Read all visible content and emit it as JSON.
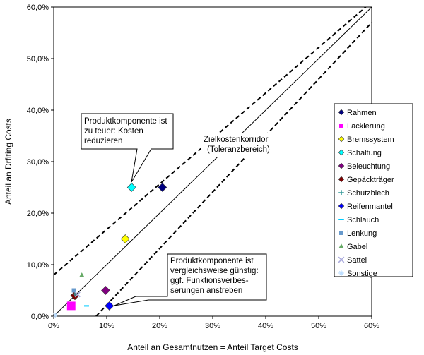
{
  "chart_data": {
    "type": "scatter",
    "title": "",
    "xlabel": "Anteil an Gesamtnutzen = Anteil Target Costs",
    "ylabel": "Anteil an Drfiting Costs",
    "xlim": [
      0,
      60
    ],
    "ylim": [
      0,
      60
    ],
    "x_ticks": [
      "0%",
      "10%",
      "20%",
      "30%",
      "40%",
      "50%",
      "60%"
    ],
    "y_ticks": [
      "0,0%",
      "10,0%",
      "20,0%",
      "30,0%",
      "40,0%",
      "50,0%",
      "60,0%"
    ],
    "grid": false,
    "legend_position": "right",
    "series": [
      {
        "name": "Rahmen",
        "marker": "diamond",
        "color": "#000080",
        "x": 20.5,
        "y": 25
      },
      {
        "name": "Lackierung",
        "marker": "square",
        "color": "#ff00ff",
        "x": 3.3,
        "y": 2
      },
      {
        "name": "Bremssystem",
        "marker": "diamond",
        "color": "#ffff00",
        "x": 13.5,
        "y": 15
      },
      {
        "name": "Schaltung",
        "marker": "diamond",
        "color": "#00ffff",
        "x": 14.7,
        "y": 25
      },
      {
        "name": "Beleuchtung",
        "marker": "diamond",
        "color": "#800080",
        "x": 9.8,
        "y": 5
      },
      {
        "name": "Gepäckträger",
        "marker": "diamond",
        "color": "#800000",
        "x": 4,
        "y": 4
      },
      {
        "name": "Schutzblech",
        "marker": "plus",
        "color": "#339999",
        "x": 4,
        "y": 4.3
      },
      {
        "name": "Reifenmantel",
        "marker": "diamond",
        "color": "#0000ff",
        "x": 10.5,
        "y": 2
      },
      {
        "name": "Schlauch",
        "marker": "dash",
        "color": "#00ccff",
        "x": 6.2,
        "y": 2
      },
      {
        "name": "Lenkung",
        "marker": "square",
        "color": "#6699cc",
        "x": 3.8,
        "y": 5
      },
      {
        "name": "Gabel",
        "marker": "triangle",
        "color": "#66aa66",
        "x": 5.3,
        "y": 8
      },
      {
        "name": "Sattel",
        "marker": "x",
        "color": "#aaaadd",
        "x": 4.5,
        "y": 4.2
      },
      {
        "name": "Sonstige",
        "marker": "star",
        "color": "#bbddff",
        "x": 0.3,
        "y": 0.2
      }
    ],
    "lines": [
      {
        "name": "upper-corridor",
        "style": "dashed",
        "points": [
          [
            0,
            8
          ],
          [
            60,
            61
          ]
        ]
      },
      {
        "name": "diagonal",
        "style": "solid",
        "points": [
          [
            0,
            0
          ],
          [
            60,
            60
          ]
        ]
      },
      {
        "name": "lower-corridor",
        "style": "dashed",
        "points": [
          [
            8,
            0
          ],
          [
            60,
            57
          ]
        ]
      }
    ],
    "annotations": [
      {
        "id": "teuer",
        "lines": [
          "Produktkomponente ist",
          "zu teuer: Kosten",
          "reduzieren"
        ]
      },
      {
        "id": "korridor",
        "lines": [
          "Zielkostenkorridor",
          "(Toleranzbereich)"
        ]
      },
      {
        "id": "guenstig",
        "lines": [
          "Produktkomponente ist",
          "vergleichsweise günstig:",
          "ggf. Funktionsverbes-",
          "serungen anstreben"
        ]
      }
    ]
  }
}
